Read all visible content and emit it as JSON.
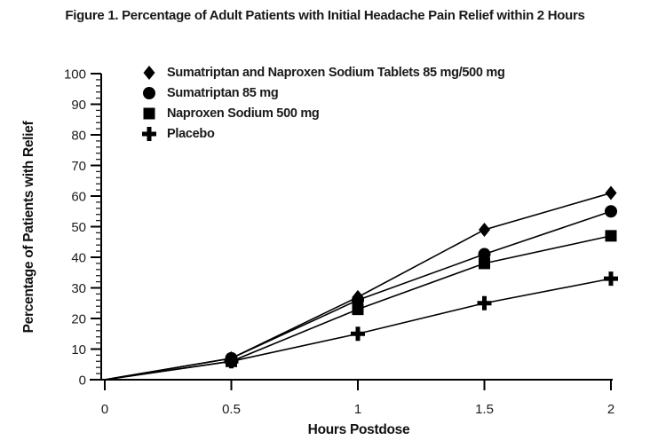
{
  "figure": {
    "title": "Figure 1. Percentage of Adult Patients with Initial Headache Pain Relief within 2 Hours"
  },
  "chart_data": {
    "type": "line",
    "title": "Figure 1. Percentage of Adult Patients with Initial Headache Pain Relief within 2 Hours",
    "xlabel": "Hours Postdose",
    "ylabel": "Percentage of Patients with Relief",
    "x": [
      0,
      0.5,
      1,
      1.5,
      2
    ],
    "x_ticks": [
      0,
      0.5,
      1,
      1.5,
      2
    ],
    "x_tick_labels": [
      "0",
      "0.5",
      "1",
      "1.5",
      "2"
    ],
    "ylim": [
      0,
      100
    ],
    "y_tick_step": 10,
    "y_minor_step": 2,
    "y_tick_labels": [
      "0",
      "10",
      "20",
      "30",
      "40",
      "50",
      "60",
      "70",
      "80",
      "90",
      "100"
    ],
    "grid": false,
    "legend_position": "top-left-inside",
    "colors": {
      "line": "#000000",
      "text": "#1a1a1a",
      "background": "#ffffff"
    },
    "series": [
      {
        "key": "combo",
        "name": "Sumatriptan and Naproxen Sodium Tablets 85 mg/500 mg",
        "marker": "diamond",
        "values": [
          0,
          7,
          27,
          49,
          61
        ]
      },
      {
        "key": "sumatriptan",
        "name": "Sumatriptan 85 mg",
        "marker": "circle",
        "values": [
          0,
          7,
          26,
          41,
          55
        ]
      },
      {
        "key": "naproxen",
        "name": "Naproxen Sodium 500 mg",
        "marker": "square",
        "values": [
          0,
          6,
          23,
          38,
          47
        ]
      },
      {
        "key": "placebo",
        "name": "Placebo",
        "marker": "plus",
        "values": [
          0,
          6,
          15,
          25,
          33
        ]
      }
    ]
  }
}
